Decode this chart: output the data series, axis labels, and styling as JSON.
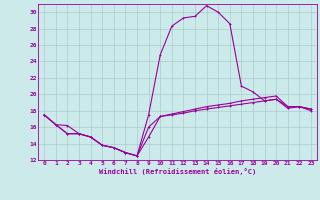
{
  "xlabel": "Windchill (Refroidissement éolien,°C)",
  "background_color": "#cceaea",
  "grid_color": "#aacccc",
  "line_color": "#990099",
  "xlim": [
    -0.5,
    23.5
  ],
  "ylim": [
    12,
    31
  ],
  "yticks": [
    12,
    14,
    16,
    18,
    20,
    22,
    24,
    26,
    28,
    30
  ],
  "xticks": [
    0,
    1,
    2,
    3,
    4,
    5,
    6,
    7,
    8,
    9,
    10,
    11,
    12,
    13,
    14,
    15,
    16,
    17,
    18,
    19,
    20,
    21,
    22,
    23
  ],
  "series1_x": [
    0,
    1,
    2,
    3,
    4,
    5,
    6,
    7,
    8,
    9,
    10,
    11,
    12,
    13,
    14,
    15,
    16,
    17,
    18,
    19,
    20,
    21,
    22,
    23
  ],
  "series1_y": [
    17.5,
    16.3,
    16.2,
    15.2,
    14.8,
    13.8,
    13.5,
    12.9,
    12.5,
    14.8,
    17.3,
    17.5,
    17.7,
    18.0,
    18.2,
    18.4,
    18.6,
    18.8,
    19.0,
    19.2,
    19.4,
    18.3,
    18.5,
    18.0
  ],
  "series2_x": [
    0,
    1,
    2,
    3,
    4,
    5,
    6,
    7,
    8,
    9,
    10,
    11,
    12,
    13,
    14,
    15,
    16,
    17,
    18,
    19,
    20,
    21,
    22,
    23
  ],
  "series2_y": [
    17.5,
    16.3,
    15.2,
    15.2,
    14.8,
    13.8,
    13.5,
    12.9,
    12.5,
    16.0,
    17.3,
    17.6,
    17.9,
    18.2,
    18.5,
    18.7,
    18.9,
    19.2,
    19.4,
    19.6,
    19.8,
    18.5,
    18.5,
    18.2
  ],
  "series3_x": [
    0,
    1,
    2,
    3,
    4,
    5,
    6,
    7,
    8,
    9,
    10,
    11,
    12,
    13,
    14,
    15,
    16,
    17,
    18,
    19,
    20,
    21,
    22,
    23
  ],
  "series3_y": [
    17.5,
    16.3,
    15.2,
    15.2,
    14.8,
    13.8,
    13.5,
    12.9,
    12.5,
    17.5,
    24.8,
    28.3,
    29.3,
    29.5,
    30.8,
    30.0,
    28.6,
    21.0,
    20.3,
    19.2,
    19.4,
    18.5,
    18.5,
    18.2
  ]
}
